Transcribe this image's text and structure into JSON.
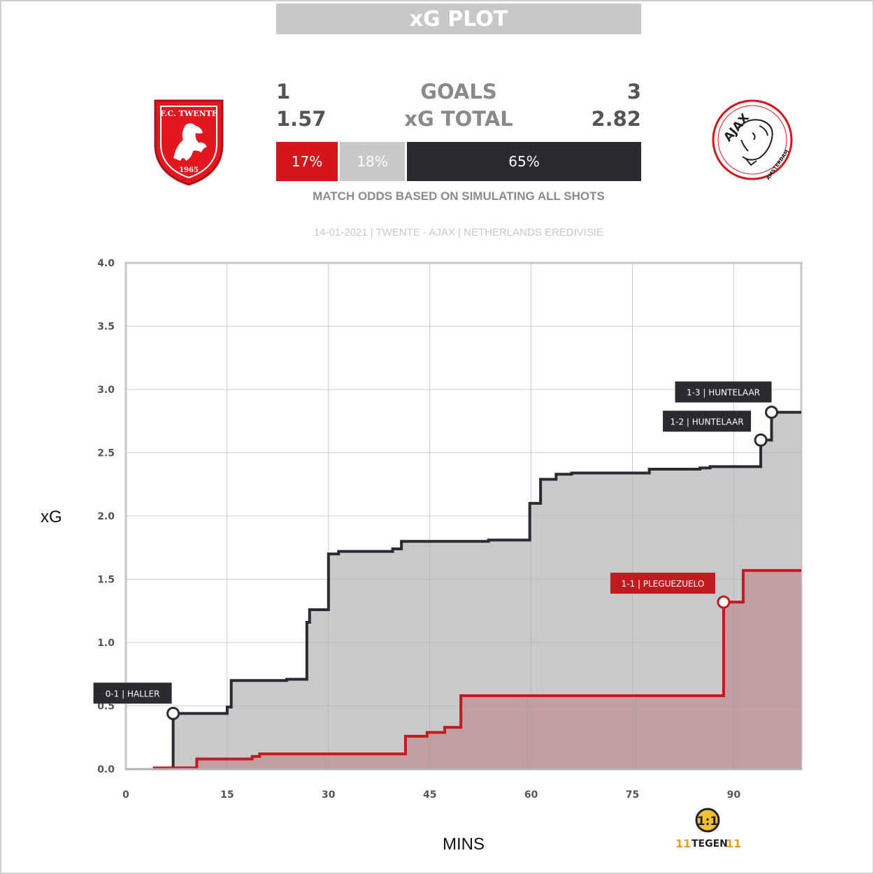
{
  "header": {
    "title": "xG PLOT"
  },
  "teams": {
    "home": {
      "goals": "1",
      "xg_total": "1.57",
      "logo_top": "F.C. TWENTE",
      "logo_year": "1965",
      "color": "#d4161c"
    },
    "away": {
      "goals": "3",
      "xg_total": "2.82",
      "logo_name": "AJAX",
      "logo_city": "AMSTERDAM",
      "color": "#2a2a30"
    }
  },
  "labels": {
    "goals": "GOALS",
    "xg_total": "xG TOTAL",
    "odds_caption": "MATCH ODDS BASED ON SIMULATING ALL SHOTS",
    "match_info": "14-01-2021 | TWENTE - AJAX | NETHERLANDS EREDIVISIE"
  },
  "odds": [
    {
      "label": "17%",
      "value": 17,
      "color": "#d4161c"
    },
    {
      "label": "18%",
      "value": 18,
      "color": "#c8c8c8"
    },
    {
      "label": "65%",
      "value": 65,
      "color": "#2a2a30"
    }
  ],
  "watermark": {
    "brand_left": "11",
    "brand_mid": "TEGEN",
    "brand_right": "11"
  },
  "chart_data": {
    "type": "line",
    "step": true,
    "xlabel": "MINS",
    "ylabel": "xG",
    "xlim": [
      0,
      100
    ],
    "ylim": [
      0,
      4.0
    ],
    "xticks": [
      0,
      15,
      30,
      45,
      60,
      75,
      90
    ],
    "yticks": [
      0.0,
      0.5,
      1.0,
      1.5,
      2.0,
      2.5,
      3.0,
      3.5,
      4.0
    ],
    "grid": true,
    "series": [
      {
        "color": "#2a2a30",
        "fill": "#c9c9cb",
        "points": [
          [
            7,
            0
          ],
          [
            7,
            0.44
          ],
          [
            15,
            0.44
          ],
          [
            15,
            0.49
          ],
          [
            15.6,
            0.49
          ],
          [
            15.6,
            0.7
          ],
          [
            23.8,
            0.7
          ],
          [
            23.8,
            0.71
          ],
          [
            26.8,
            0.71
          ],
          [
            26.8,
            1.16
          ],
          [
            27.2,
            1.16
          ],
          [
            27.2,
            1.26
          ],
          [
            30,
            1.26
          ],
          [
            30,
            1.7
          ],
          [
            31.5,
            1.7
          ],
          [
            31.5,
            1.72
          ],
          [
            39.5,
            1.72
          ],
          [
            39.5,
            1.74
          ],
          [
            40.8,
            1.74
          ],
          [
            40.8,
            1.8
          ],
          [
            53.7,
            1.8
          ],
          [
            53.7,
            1.81
          ],
          [
            59.8,
            1.81
          ],
          [
            59.8,
            2.1
          ],
          [
            61.4,
            2.1
          ],
          [
            61.4,
            2.29
          ],
          [
            63.7,
            2.29
          ],
          [
            63.7,
            2.33
          ],
          [
            66,
            2.33
          ],
          [
            66,
            2.34
          ],
          [
            77.5,
            2.34
          ],
          [
            77.5,
            2.37
          ],
          [
            85,
            2.37
          ],
          [
            85,
            2.38
          ],
          [
            86.5,
            2.38
          ],
          [
            86.5,
            2.39
          ],
          [
            94,
            2.39
          ],
          [
            94,
            2.6
          ],
          [
            95.6,
            2.6
          ],
          [
            95.6,
            2.82
          ],
          [
            100,
            2.82
          ]
        ]
      },
      {
        "color": "#c11a1f",
        "fill": "#bf9a9c",
        "points": [
          [
            4.2,
            0
          ],
          [
            4.2,
            0.01
          ],
          [
            10.5,
            0.01
          ],
          [
            10.5,
            0.08
          ],
          [
            18.7,
            0.08
          ],
          [
            18.7,
            0.1
          ],
          [
            19.8,
            0.1
          ],
          [
            19.8,
            0.12
          ],
          [
            41.4,
            0.12
          ],
          [
            41.4,
            0.26
          ],
          [
            44.6,
            0.26
          ],
          [
            44.6,
            0.29
          ],
          [
            47.2,
            0.29
          ],
          [
            47.2,
            0.33
          ],
          [
            49.6,
            0.33
          ],
          [
            49.6,
            0.58
          ],
          [
            88.5,
            0.58
          ],
          [
            88.5,
            1.32
          ],
          [
            91.4,
            1.32
          ],
          [
            91.4,
            1.57
          ],
          [
            100,
            1.57
          ]
        ]
      }
    ],
    "annotations": [
      {
        "text": "0-1 | HALLER",
        "x": 7,
        "y": 0.44,
        "series": 0
      },
      {
        "text": "1-1 | PLEGUEZUELO",
        "x": 88.5,
        "y": 1.32,
        "series": 1
      },
      {
        "text": "1-2 | HUNTELAAR",
        "x": 94,
        "y": 2.6,
        "series": 0
      },
      {
        "text": "1-3 | HUNTELAAR",
        "x": 95.6,
        "y": 2.82,
        "series": 0
      }
    ]
  }
}
